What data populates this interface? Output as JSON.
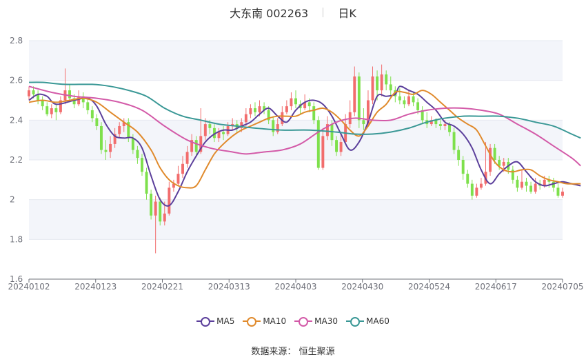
{
  "title": {
    "name": "大东南 002263",
    "period": "日K"
  },
  "source": {
    "label": "数据来源：",
    "value": "恒生聚源"
  },
  "chart_data": {
    "type": "candlestick",
    "ylim": [
      1.6,
      2.8
    ],
    "yticks": [
      "1.6",
      "1.8",
      "2",
      "2.2",
      "2.4",
      "2.6",
      "2.8"
    ],
    "xtick_labels": [
      "20240102",
      "20240123",
      "20240221",
      "20240313",
      "20240403",
      "20240430",
      "20240524",
      "20240617",
      "20240705"
    ],
    "colors": {
      "up": "#f26d6d",
      "down": "#7ee04c",
      "grid": "#e6e9f0",
      "band": "#f3f5fa",
      "axis": "#6e7079"
    },
    "candles": [
      [
        2.52,
        2.55,
        2.57,
        2.5
      ],
      [
        2.55,
        2.53,
        2.57,
        2.51
      ],
      [
        2.53,
        2.5,
        2.55,
        2.48
      ],
      [
        2.5,
        2.47,
        2.52,
        2.45
      ],
      [
        2.47,
        2.43,
        2.49,
        2.42
      ],
      [
        2.43,
        2.46,
        2.48,
        2.41
      ],
      [
        2.46,
        2.44,
        2.48,
        2.4
      ],
      [
        2.44,
        2.5,
        2.52,
        2.43
      ],
      [
        2.5,
        2.55,
        2.66,
        2.48
      ],
      [
        2.55,
        2.51,
        2.58,
        2.49
      ],
      [
        2.51,
        2.48,
        2.53,
        2.46
      ],
      [
        2.48,
        2.52,
        2.55,
        2.47
      ],
      [
        2.52,
        2.49,
        2.54,
        2.46
      ],
      [
        2.49,
        2.45,
        2.51,
        2.43
      ],
      [
        2.45,
        2.41,
        2.47,
        2.39
      ],
      [
        2.41,
        2.37,
        2.43,
        2.35
      ],
      [
        2.37,
        2.25,
        2.39,
        2.23
      ],
      [
        2.25,
        2.24,
        2.3,
        2.2
      ],
      [
        2.24,
        2.28,
        2.32,
        2.21
      ],
      [
        2.28,
        2.33,
        2.36,
        2.26
      ],
      [
        2.33,
        2.37,
        2.39,
        2.31
      ],
      [
        2.37,
        2.39,
        2.41,
        2.34
      ],
      [
        2.39,
        2.31,
        2.41,
        2.29
      ],
      [
        2.31,
        2.25,
        2.33,
        2.23
      ],
      [
        2.25,
        2.21,
        2.27,
        2.18
      ],
      [
        2.21,
        2.14,
        2.23,
        2.12
      ],
      [
        2.14,
        2.03,
        2.16,
        2.0
      ],
      [
        2.03,
        1.92,
        2.05,
        1.9
      ],
      [
        1.92,
        1.99,
        2.02,
        1.73
      ],
      [
        1.99,
        1.89,
        2.01,
        1.87
      ],
      [
        1.89,
        1.93,
        1.99,
        1.87
      ],
      [
        1.93,
        2.06,
        2.09,
        1.92
      ],
      [
        2.06,
        2.08,
        2.1,
        2.04
      ],
      [
        2.08,
        2.13,
        2.17,
        2.07
      ],
      [
        2.13,
        2.18,
        2.22,
        2.11
      ],
      [
        2.18,
        2.24,
        2.27,
        2.16
      ],
      [
        2.24,
        2.3,
        2.33,
        2.22
      ],
      [
        2.3,
        2.24,
        2.32,
        2.22
      ],
      [
        2.24,
        2.32,
        2.46,
        2.23
      ],
      [
        2.32,
        2.38,
        2.41,
        2.3
      ],
      [
        2.38,
        2.36,
        2.4,
        2.33
      ],
      [
        2.36,
        2.31,
        2.38,
        2.29
      ],
      [
        2.31,
        2.34,
        2.36,
        2.29
      ],
      [
        2.34,
        2.33,
        2.37,
        2.3
      ],
      [
        2.33,
        2.37,
        2.39,
        2.32
      ],
      [
        2.37,
        2.38,
        2.41,
        2.35
      ],
      [
        2.38,
        2.36,
        2.4,
        2.34
      ],
      [
        2.36,
        2.39,
        2.41,
        2.34
      ],
      [
        2.39,
        2.43,
        2.46,
        2.37
      ],
      [
        2.43,
        2.46,
        2.48,
        2.41
      ],
      [
        2.46,
        2.44,
        2.49,
        2.42
      ],
      [
        2.44,
        2.47,
        2.5,
        2.42
      ],
      [
        2.47,
        2.45,
        2.49,
        2.43
      ],
      [
        2.45,
        2.4,
        2.47,
        2.38
      ],
      [
        2.4,
        2.34,
        2.42,
        2.32
      ],
      [
        2.34,
        2.38,
        2.41,
        2.33
      ],
      [
        2.38,
        2.44,
        2.47,
        2.37
      ],
      [
        2.44,
        2.47,
        2.5,
        2.43
      ],
      [
        2.47,
        2.51,
        2.54,
        2.45
      ],
      [
        2.51,
        2.48,
        2.55,
        2.46
      ],
      [
        2.48,
        2.46,
        2.5,
        2.43
      ],
      [
        2.46,
        2.49,
        2.53,
        2.45
      ],
      [
        2.49,
        2.47,
        2.51,
        2.44
      ],
      [
        2.47,
        2.4,
        2.49,
        2.38
      ],
      [
        2.4,
        2.16,
        2.42,
        2.15
      ],
      [
        2.16,
        2.32,
        2.36,
        2.15
      ],
      [
        2.32,
        2.38,
        2.42,
        2.3
      ],
      [
        2.38,
        2.3,
        2.4,
        2.27
      ],
      [
        2.3,
        2.24,
        2.32,
        2.22
      ],
      [
        2.24,
        2.29,
        2.33,
        2.22
      ],
      [
        2.29,
        2.38,
        2.43,
        2.28
      ],
      [
        2.38,
        2.44,
        2.5,
        2.36
      ],
      [
        2.44,
        2.62,
        2.67,
        2.42
      ],
      [
        2.62,
        2.4,
        2.64,
        2.36
      ],
      [
        2.4,
        2.38,
        2.46,
        2.35
      ],
      [
        2.38,
        2.5,
        2.55,
        2.37
      ],
      [
        2.5,
        2.62,
        2.67,
        2.48
      ],
      [
        2.62,
        2.55,
        2.65,
        2.5
      ],
      [
        2.55,
        2.63,
        2.68,
        2.52
      ],
      [
        2.63,
        2.58,
        2.65,
        2.55
      ],
      [
        2.58,
        2.55,
        2.62,
        2.52
      ],
      [
        2.55,
        2.52,
        2.57,
        2.49
      ],
      [
        2.52,
        2.5,
        2.56,
        2.48
      ],
      [
        2.5,
        2.48,
        2.52,
        2.46
      ],
      [
        2.48,
        2.52,
        2.55,
        2.47
      ],
      [
        2.52,
        2.49,
        2.54,
        2.47
      ],
      [
        2.49,
        2.45,
        2.51,
        2.43
      ],
      [
        2.45,
        2.4,
        2.47,
        2.38
      ],
      [
        2.4,
        2.38,
        2.44,
        2.36
      ],
      [
        2.38,
        2.4,
        2.42,
        2.37
      ],
      [
        2.4,
        2.38,
        2.41,
        2.36
      ],
      [
        2.38,
        2.37,
        2.4,
        2.35
      ],
      [
        2.37,
        2.38,
        2.4,
        2.35
      ],
      [
        2.38,
        2.34,
        2.39,
        2.32
      ],
      [
        2.34,
        2.25,
        2.36,
        2.23
      ],
      [
        2.25,
        2.2,
        2.27,
        2.17
      ],
      [
        2.2,
        2.13,
        2.22,
        2.1
      ],
      [
        2.13,
        2.08,
        2.15,
        2.06
      ],
      [
        2.08,
        2.02,
        2.1,
        2.0
      ],
      [
        2.02,
        2.06,
        2.08,
        2.01
      ],
      [
        2.06,
        2.08,
        2.11,
        2.05
      ],
      [
        2.08,
        2.14,
        2.29,
        2.07
      ],
      [
        2.14,
        2.26,
        2.28,
        2.12
      ],
      [
        2.26,
        2.2,
        2.28,
        2.18
      ],
      [
        2.2,
        2.17,
        2.22,
        2.15
      ],
      [
        2.17,
        2.19,
        2.21,
        2.14
      ],
      [
        2.19,
        2.15,
        2.21,
        2.13
      ],
      [
        2.15,
        2.1,
        2.17,
        2.08
      ],
      [
        2.1,
        2.06,
        2.12,
        2.04
      ],
      [
        2.06,
        2.09,
        2.15,
        2.05
      ],
      [
        2.09,
        2.07,
        2.11,
        2.04
      ],
      [
        2.07,
        2.04,
        2.09,
        2.03
      ],
      [
        2.04,
        2.08,
        2.11,
        2.03
      ],
      [
        2.08,
        2.07,
        2.1,
        2.05
      ],
      [
        2.07,
        2.1,
        2.12,
        2.06
      ],
      [
        2.1,
        2.09,
        2.12,
        2.06
      ],
      [
        2.09,
        2.06,
        2.11,
        2.04
      ],
      [
        2.06,
        2.02,
        2.08,
        2.01
      ],
      [
        2.02,
        2.04,
        2.06,
        2.01
      ]
    ],
    "series": [
      {
        "name": "MA5",
        "color": "#5b3f9b",
        "points": [
          [
            0,
            2.5
          ],
          [
            2,
            2.53
          ],
          [
            4,
            2.52
          ],
          [
            6,
            2.48
          ],
          [
            10,
            2.5
          ],
          [
            13,
            2.51
          ],
          [
            15,
            2.47
          ],
          [
            17,
            2.38
          ],
          [
            19,
            2.32
          ],
          [
            21,
            2.31
          ],
          [
            23,
            2.31
          ],
          [
            25,
            2.26
          ],
          [
            27,
            2.12
          ],
          [
            29,
            2.0
          ],
          [
            31,
            1.97
          ],
          [
            33,
            2.04
          ],
          [
            35,
            2.14
          ],
          [
            37,
            2.22
          ],
          [
            39,
            2.29
          ],
          [
            41,
            2.33
          ],
          [
            43,
            2.35
          ],
          [
            45,
            2.35
          ],
          [
            47,
            2.37
          ],
          [
            49,
            2.39
          ],
          [
            51,
            2.43
          ],
          [
            53,
            2.46
          ],
          [
            55,
            2.42
          ],
          [
            57,
            2.39
          ],
          [
            59,
            2.45
          ],
          [
            61,
            2.49
          ],
          [
            63,
            2.5
          ],
          [
            65,
            2.48
          ],
          [
            67,
            2.42
          ],
          [
            69,
            2.33
          ],
          [
            71,
            2.25
          ],
          [
            73,
            2.29
          ],
          [
            75,
            2.39
          ],
          [
            77,
            2.52
          ],
          [
            79,
            2.52
          ],
          [
            81,
            2.53
          ],
          [
            82,
            2.57
          ],
          [
            84,
            2.55
          ],
          [
            86,
            2.53
          ],
          [
            88,
            2.49
          ],
          [
            90,
            2.45
          ],
          [
            92,
            2.39
          ],
          [
            94,
            2.37
          ],
          [
            96,
            2.33
          ],
          [
            98,
            2.26
          ],
          [
            100,
            2.15
          ],
          [
            102,
            2.08
          ],
          [
            104,
            2.13
          ],
          [
            106,
            2.17
          ],
          [
            108,
            2.19
          ],
          [
            110,
            2.14
          ],
          [
            112,
            2.09
          ],
          [
            114,
            2.07
          ],
          [
            116,
            2.08
          ],
          [
            118,
            2.09
          ],
          [
            120,
            2.08
          ],
          [
            122,
            2.07
          ]
        ]
      },
      {
        "name": "MA10",
        "color": "#e08a2c",
        "points": [
          [
            0,
            2.49
          ],
          [
            3,
            2.5
          ],
          [
            6,
            2.49
          ],
          [
            9,
            2.5
          ],
          [
            12,
            2.51
          ],
          [
            15,
            2.49
          ],
          [
            18,
            2.44
          ],
          [
            21,
            2.39
          ],
          [
            24,
            2.34
          ],
          [
            27,
            2.25
          ],
          [
            29,
            2.16
          ],
          [
            31,
            2.1
          ],
          [
            33,
            2.07
          ],
          [
            35,
            2.06
          ],
          [
            37,
            2.07
          ],
          [
            39,
            2.15
          ],
          [
            41,
            2.23
          ],
          [
            43,
            2.28
          ],
          [
            45,
            2.32
          ],
          [
            47,
            2.35
          ],
          [
            49,
            2.37
          ],
          [
            51,
            2.39
          ],
          [
            53,
            2.41
          ],
          [
            55,
            2.42
          ],
          [
            57,
            2.42
          ],
          [
            59,
            2.42
          ],
          [
            61,
            2.44
          ],
          [
            63,
            2.45
          ],
          [
            65,
            2.46
          ],
          [
            67,
            2.44
          ],
          [
            69,
            2.4
          ],
          [
            71,
            2.35
          ],
          [
            73,
            2.32
          ],
          [
            75,
            2.37
          ],
          [
            77,
            2.44
          ],
          [
            79,
            2.48
          ],
          [
            81,
            2.54
          ],
          [
            83,
            2.54
          ],
          [
            85,
            2.53
          ],
          [
            87,
            2.55
          ],
          [
            89,
            2.53
          ],
          [
            91,
            2.49
          ],
          [
            93,
            2.45
          ],
          [
            95,
            2.41
          ],
          [
            97,
            2.38
          ],
          [
            99,
            2.35
          ],
          [
            101,
            2.27
          ],
          [
            103,
            2.19
          ],
          [
            105,
            2.15
          ],
          [
            107,
            2.14
          ],
          [
            109,
            2.15
          ],
          [
            111,
            2.15
          ],
          [
            113,
            2.12
          ],
          [
            115,
            2.1
          ],
          [
            117,
            2.09
          ],
          [
            119,
            2.08
          ],
          [
            122,
            2.08
          ]
        ]
      },
      {
        "name": "MA30",
        "color": "#d35aa8",
        "points": [
          [
            0,
            2.57
          ],
          [
            5,
            2.54
          ],
          [
            10,
            2.52
          ],
          [
            15,
            2.51
          ],
          [
            20,
            2.49
          ],
          [
            25,
            2.45
          ],
          [
            30,
            2.37
          ],
          [
            35,
            2.3
          ],
          [
            40,
            2.26
          ],
          [
            45,
            2.24
          ],
          [
            48,
            2.23
          ],
          [
            52,
            2.24
          ],
          [
            56,
            2.25
          ],
          [
            60,
            2.28
          ],
          [
            64,
            2.34
          ],
          [
            68,
            2.39
          ],
          [
            72,
            2.41
          ],
          [
            76,
            2.4
          ],
          [
            80,
            2.4
          ],
          [
            84,
            2.43
          ],
          [
            88,
            2.45
          ],
          [
            92,
            2.46
          ],
          [
            96,
            2.46
          ],
          [
            100,
            2.45
          ],
          [
            104,
            2.43
          ],
          [
            108,
            2.38
          ],
          [
            112,
            2.33
          ],
          [
            116,
            2.27
          ],
          [
            120,
            2.21
          ],
          [
            122,
            2.17
          ]
        ]
      },
      {
        "name": "MA60",
        "color": "#3a9896",
        "points": [
          [
            0,
            2.59
          ],
          [
            3,
            2.59
          ],
          [
            8,
            2.58
          ],
          [
            14,
            2.58
          ],
          [
            18,
            2.57
          ],
          [
            22,
            2.55
          ],
          [
            26,
            2.52
          ],
          [
            30,
            2.46
          ],
          [
            34,
            2.42
          ],
          [
            38,
            2.4
          ],
          [
            42,
            2.38
          ],
          [
            46,
            2.37
          ],
          [
            50,
            2.36
          ],
          [
            56,
            2.35
          ],
          [
            62,
            2.35
          ],
          [
            68,
            2.34
          ],
          [
            72,
            2.33
          ],
          [
            76,
            2.33
          ],
          [
            80,
            2.34
          ],
          [
            84,
            2.36
          ],
          [
            88,
            2.39
          ],
          [
            92,
            2.41
          ],
          [
            96,
            2.42
          ],
          [
            100,
            2.42
          ],
          [
            104,
            2.42
          ],
          [
            108,
            2.41
          ],
          [
            112,
            2.39
          ],
          [
            116,
            2.37
          ],
          [
            120,
            2.33
          ],
          [
            122,
            2.31
          ]
        ]
      }
    ]
  }
}
